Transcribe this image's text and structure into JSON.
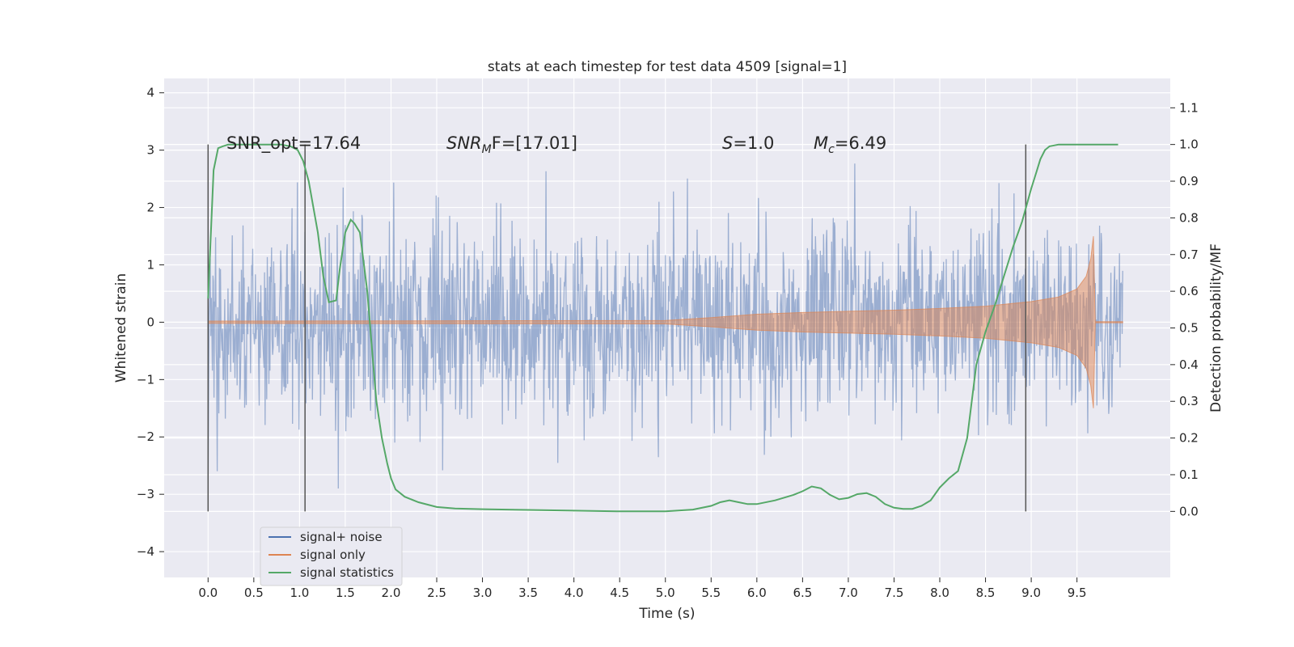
{
  "chart_data": {
    "type": "line",
    "title": "stats at each timestep for test data 4509 [signal=1]",
    "xlabel": "Time (s)",
    "ylabel": "Whitened strain",
    "y2label": "Detection probability/MF",
    "xlim": [
      -0.48,
      10.52
    ],
    "ylim": [
      -4.45,
      4.25
    ],
    "y2lim": [
      -0.18,
      1.18
    ],
    "x_ticks": [
      "0.0",
      "0.5",
      "1.0",
      "1.5",
      "2.0",
      "2.5",
      "3.0",
      "3.5",
      "4.0",
      "4.5",
      "5.0",
      "5.5",
      "6.0",
      "6.5",
      "7.0",
      "7.5",
      "8.0",
      "8.5",
      "9.0",
      "9.5"
    ],
    "y_ticks": [
      "4",
      "3",
      "2",
      "1",
      "0",
      "−1",
      "−2",
      "−3",
      "−4"
    ],
    "y2_ticks": [
      "1.1",
      "1.0",
      "0.9",
      "0.8",
      "0.7",
      "0.6",
      "0.5",
      "0.4",
      "0.3",
      "0.2",
      "0.1",
      "0.0"
    ],
    "grid": true,
    "legend_position": "lower-left",
    "annotations": {
      "snr_opt": "SNR_opt=17.64",
      "snr_mf_base": "SNR",
      "snr_mf_sub": "M",
      "snr_mf_rest": "F=[17.01]",
      "s_var": "S",
      "s_val": "=1.0",
      "mc_var": "M",
      "mc_sub": "c",
      "mc_val": "=6.49"
    },
    "segment_markers_x": [
      0.0,
      1.06,
      8.94
    ],
    "series": [
      {
        "name": "signal+ noise",
        "color": "#4c72b0",
        "description_range": [
          -4.1,
          3.9
        ],
        "x_range": [
          0.0,
          10.0
        ]
      },
      {
        "name": "signal only",
        "color": "#dd8452",
        "envelope": {
          "x": [
            0.0,
            5.0,
            5.5,
            6.0,
            6.5,
            7.0,
            7.5,
            8.0,
            8.5,
            9.0,
            9.3,
            9.5,
            9.6,
            9.65,
            9.68,
            9.7,
            10.0
          ],
          "amp": [
            0.02,
            0.03,
            0.08,
            0.14,
            0.17,
            0.19,
            0.21,
            0.24,
            0.28,
            0.36,
            0.44,
            0.58,
            0.8,
            1.1,
            1.5,
            0.01,
            0.01
          ]
        }
      },
      {
        "name": "signal statistics",
        "color": "#55a868",
        "x": [
          0.0,
          0.06,
          0.11,
          0.16,
          0.22,
          0.3,
          0.45,
          0.6,
          0.8,
          0.9,
          0.98,
          1.04,
          1.1,
          1.2,
          1.26,
          1.32,
          1.4,
          1.44,
          1.5,
          1.56,
          1.6,
          1.66,
          1.74,
          1.8,
          1.84,
          1.9,
          1.96,
          2.0,
          2.05,
          2.15,
          2.3,
          2.5,
          2.7,
          3.0,
          3.5,
          4.0,
          4.5,
          5.0,
          5.3,
          5.5,
          5.6,
          5.7,
          5.8,
          5.9,
          6.0,
          6.2,
          6.4,
          6.5,
          6.6,
          6.7,
          6.8,
          6.9,
          7.0,
          7.1,
          7.2,
          7.3,
          7.4,
          7.5,
          7.6,
          7.7,
          7.8,
          7.9,
          8.0,
          8.1,
          8.2,
          8.3,
          8.4,
          8.5,
          8.6,
          8.7,
          8.8,
          8.9,
          9.0,
          9.05,
          9.1,
          9.15,
          9.2,
          9.3,
          9.5,
          9.95
        ],
        "y": [
          0.58,
          0.93,
          0.99,
          0.995,
          1.0,
          1.0,
          1.0,
          1.0,
          1.0,
          0.995,
          0.985,
          0.955,
          0.9,
          0.76,
          0.64,
          0.57,
          0.575,
          0.66,
          0.76,
          0.795,
          0.785,
          0.76,
          0.6,
          0.42,
          0.3,
          0.2,
          0.13,
          0.09,
          0.06,
          0.04,
          0.025,
          0.012,
          0.008,
          0.006,
          0.004,
          0.002,
          0.0,
          0.0,
          0.005,
          0.015,
          0.025,
          0.03,
          0.025,
          0.02,
          0.02,
          0.03,
          0.045,
          0.055,
          0.068,
          0.063,
          0.045,
          0.033,
          0.037,
          0.047,
          0.05,
          0.04,
          0.02,
          0.01,
          0.007,
          0.007,
          0.015,
          0.03,
          0.065,
          0.09,
          0.11,
          0.2,
          0.4,
          0.49,
          0.56,
          0.64,
          0.72,
          0.79,
          0.88,
          0.92,
          0.96,
          0.985,
          0.995,
          1.0,
          1.0,
          1.0
        ]
      }
    ]
  }
}
